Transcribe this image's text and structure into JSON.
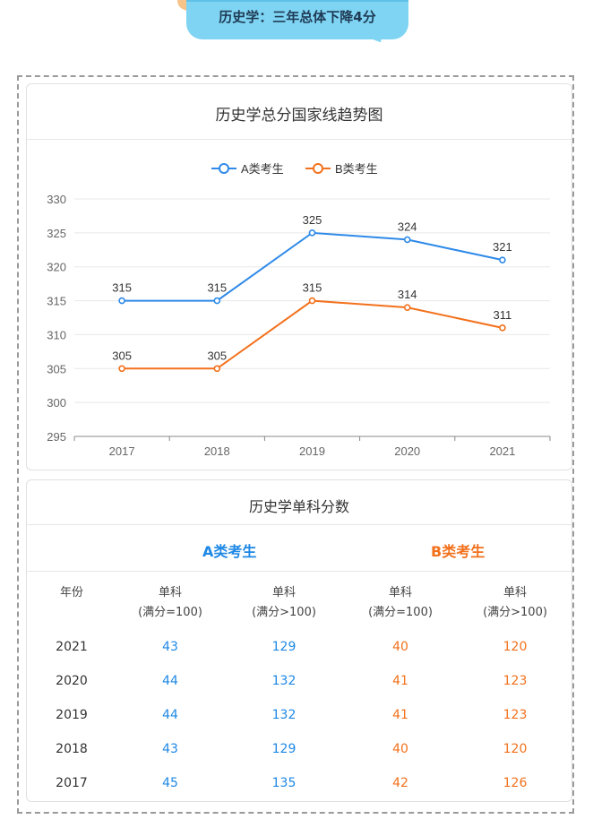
{
  "banner": {
    "text": "历史学：三年总体下降4分"
  },
  "chart_data": {
    "type": "line",
    "title": "历史学总分国家线趋势图",
    "categories": [
      "2017",
      "2018",
      "2019",
      "2020",
      "2021"
    ],
    "ylim": [
      295,
      330
    ],
    "yticks": [
      295,
      300,
      305,
      310,
      315,
      320,
      325,
      330
    ],
    "grid": true,
    "legend": "top-center",
    "series": [
      {
        "name": "A类考生",
        "color": "#2f8ae8",
        "values": [
          315,
          315,
          325,
          324,
          321
        ]
      },
      {
        "name": "B类考生",
        "color": "#f2711c",
        "values": [
          305,
          305,
          315,
          314,
          311
        ]
      }
    ]
  },
  "table": {
    "title": "历史学单科分数",
    "group_a": "A类考生",
    "group_b": "B类考生",
    "year_header": "年份",
    "col_line1": "单科",
    "col_a1_line2": "(满分=100)",
    "col_a2_line2": "(满分>100)",
    "col_b1_line2": "(满分=100)",
    "col_b2_line2": "(满分>100)",
    "rows": [
      {
        "year": "2021",
        "a1": "43",
        "a2": "129",
        "b1": "40",
        "b2": "120"
      },
      {
        "year": "2020",
        "a1": "44",
        "a2": "132",
        "b1": "41",
        "b2": "123"
      },
      {
        "year": "2019",
        "a1": "44",
        "a2": "132",
        "b1": "41",
        "b2": "123"
      },
      {
        "year": "2018",
        "a1": "43",
        "a2": "129",
        "b1": "40",
        "b2": "120"
      },
      {
        "year": "2017",
        "a1": "45",
        "a2": "135",
        "b1": "42",
        "b2": "126"
      }
    ]
  }
}
